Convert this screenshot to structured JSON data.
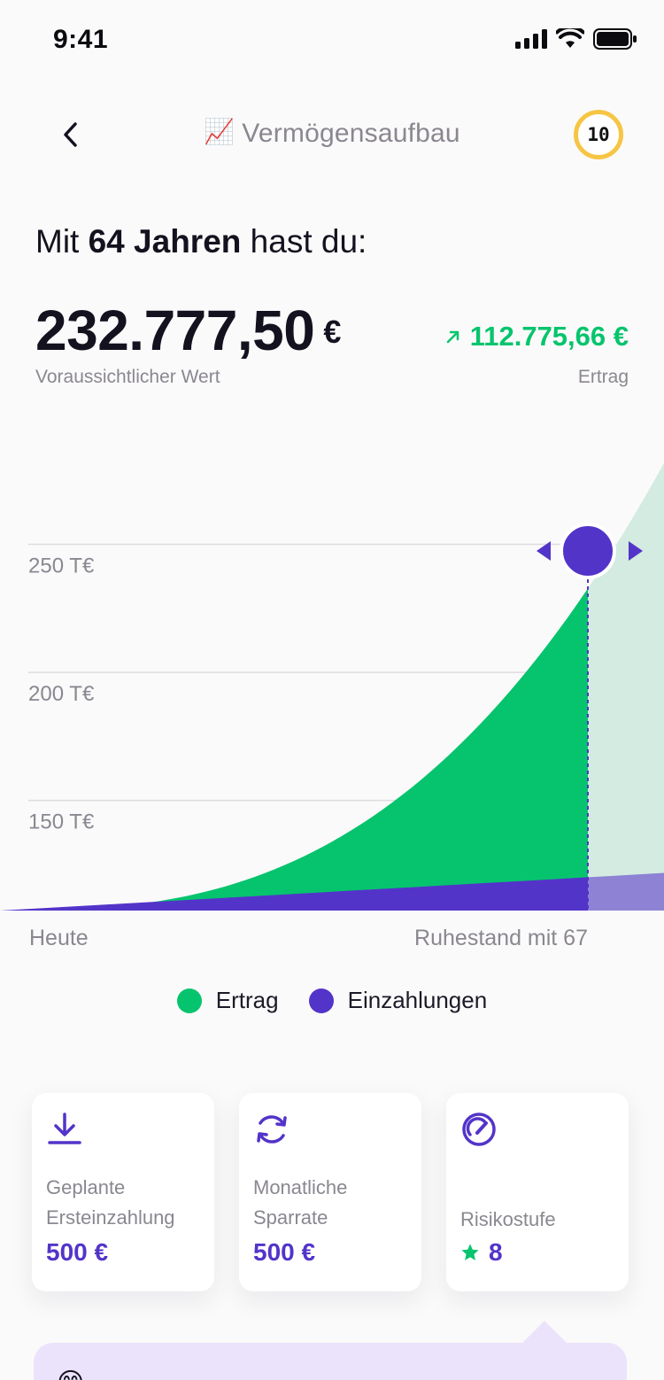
{
  "status_bar": {
    "time": "9:41"
  },
  "nav": {
    "title": "Vermögensaufbau",
    "title_emoji": "📈",
    "level": "10"
  },
  "summary": {
    "headline_prefix": "Mit ",
    "headline_bold": "64 Jahren",
    "headline_suffix": " hast du:",
    "value": "232.777,50",
    "currency": "€",
    "value_label": "Voraussichtlicher Wert",
    "gain": "112.775,66 €",
    "gain_label": "Ertrag"
  },
  "chart_data": {
    "type": "area",
    "y_ticks": [
      "250 T€",
      "200 T€",
      "150 T€"
    ],
    "y_tick_values": [
      250,
      200,
      150
    ],
    "ylim": [
      107,
      300
    ],
    "x_start_label": "Heute",
    "x_end_label": "Ruhestand mit 67",
    "selected_age": 64,
    "selected_total": 232.7775,
    "selected_gain": 112.77566,
    "series": [
      {
        "name": "Ertrag",
        "color": "#06c46d"
      },
      {
        "name": "Einzahlungen",
        "color": "#5334c9"
      }
    ]
  },
  "legend": [
    {
      "label": "Ertrag",
      "color": "#06c46d"
    },
    {
      "label": "Einzahlungen",
      "color": "#5334c9"
    }
  ],
  "cards": [
    {
      "icon": "download-icon",
      "label_line1": "Geplante",
      "label_line2": "Ersteinzahlung",
      "value": "500 €"
    },
    {
      "icon": "refresh-icon",
      "label_line1": "Monatliche",
      "label_line2": "Sparrate",
      "value": "500 €"
    },
    {
      "icon": "speedometer-icon",
      "label": "Risikostufe",
      "value": "8"
    }
  ],
  "tip": {
    "emoji": "😊"
  },
  "colors": {
    "accent": "#5334c9",
    "green": "#06c46d",
    "badge": "#f6c544"
  }
}
